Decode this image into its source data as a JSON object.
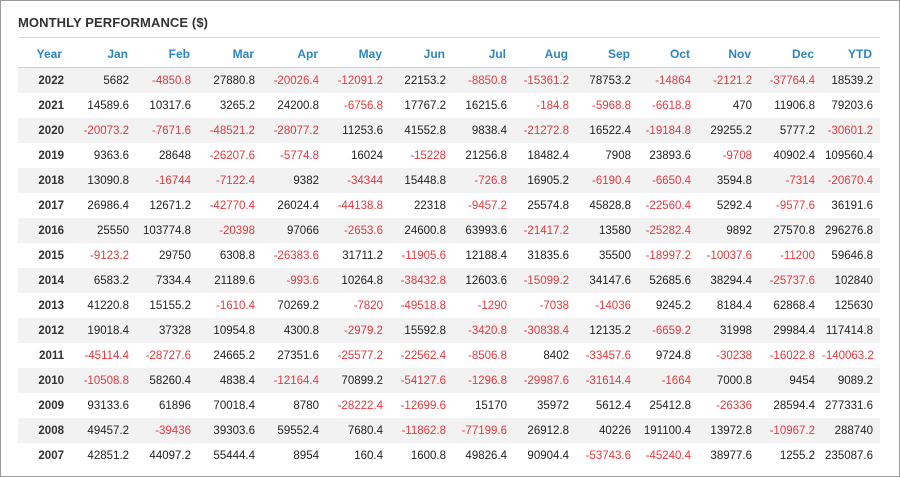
{
  "title": "MONTHLY PERFORMANCE ($)",
  "colors": {
    "header": "#2e86c1",
    "negative": "#e8383d",
    "positive": "#222222",
    "stripe": "#f2f2f2"
  },
  "chart_data": {
    "type": "table",
    "title": "MONTHLY PERFORMANCE ($)",
    "columns": [
      "Year",
      "Jan",
      "Feb",
      "Mar",
      "Apr",
      "May",
      "Jun",
      "Jul",
      "Aug",
      "Sep",
      "Oct",
      "Nov",
      "Dec",
      "YTD"
    ],
    "rows": [
      [
        "2022",
        "5682",
        "-4850.8",
        "27880.8",
        "-20026.4",
        "-12091.2",
        "22153.2",
        "-8850.8",
        "-15361.2",
        "78753.2",
        "-14864",
        "-2121.2",
        "-37764.4",
        "18539.2"
      ],
      [
        "2021",
        "14589.6",
        "10317.6",
        "3265.2",
        "24200.8",
        "-6756.8",
        "17767.2",
        "16215.6",
        "-184.8",
        "-5968.8",
        "-6618.8",
        "470",
        "11906.8",
        "79203.6"
      ],
      [
        "2020",
        "-20073.2",
        "-7671.6",
        "-48521.2",
        "-28077.2",
        "11253.6",
        "41552.8",
        "9838.4",
        "-21272.8",
        "16522.4",
        "-19184.8",
        "29255.2",
        "5777.2",
        "-30601.2"
      ],
      [
        "2019",
        "9363.6",
        "28648",
        "-26207.6",
        "-5774.8",
        "16024",
        "-15228",
        "21256.8",
        "18482.4",
        "7908",
        "23893.6",
        "-9708",
        "40902.4",
        "109560.4"
      ],
      [
        "2018",
        "13090.8",
        "-16744",
        "-7122.4",
        "9382",
        "-34344",
        "15448.8",
        "-726.8",
        "16905.2",
        "-6190.4",
        "-6650.4",
        "3594.8",
        "-7314",
        "-20670.4"
      ],
      [
        "2017",
        "26986.4",
        "12671.2",
        "-42770.4",
        "26024.4",
        "-44138.8",
        "22318",
        "-9457.2",
        "25574.8",
        "45828.8",
        "-22560.4",
        "5292.4",
        "-9577.6",
        "36191.6"
      ],
      [
        "2016",
        "25550",
        "103774.8",
        "-20398",
        "97066",
        "-2653.6",
        "24600.8",
        "63993.6",
        "-21417.2",
        "13580",
        "-25282.4",
        "9892",
        "27570.8",
        "296276.8"
      ],
      [
        "2015",
        "-9123.2",
        "29750",
        "6308.8",
        "-26383.6",
        "31711.2",
        "-11905.6",
        "12188.4",
        "31835.6",
        "35500",
        "-18997.2",
        "-10037.6",
        "-11200",
        "59646.8"
      ],
      [
        "2014",
        "6583.2",
        "7334.4",
        "21189.6",
        "-993.6",
        "10264.8",
        "-38432.8",
        "12603.6",
        "-15099.2",
        "34147.6",
        "52685.6",
        "38294.4",
        "-25737.6",
        "102840"
      ],
      [
        "2013",
        "41220.8",
        "15155.2",
        "-1610.4",
        "70269.2",
        "-7820",
        "-49518.8",
        "-1290",
        "-7038",
        "-14036",
        "9245.2",
        "8184.4",
        "62868.4",
        "125630"
      ],
      [
        "2012",
        "19018.4",
        "37328",
        "10954.8",
        "4300.8",
        "-2979.2",
        "15592.8",
        "-3420.8",
        "-30838.4",
        "12135.2",
        "-6659.2",
        "31998",
        "29984.4",
        "117414.8"
      ],
      [
        "2011",
        "-45114.4",
        "-28727.6",
        "24665.2",
        "27351.6",
        "-25577.2",
        "-22562.4",
        "-8506.8",
        "8402",
        "-33457.6",
        "9724.8",
        "-30238",
        "-16022.8",
        "-140063.2"
      ],
      [
        "2010",
        "-10508.8",
        "58260.4",
        "4838.4",
        "-12164.4",
        "70899.2",
        "-54127.6",
        "-1296.8",
        "-29987.6",
        "-31614.4",
        "-1664",
        "7000.8",
        "9454",
        "9089.2"
      ],
      [
        "2009",
        "93133.6",
        "61896",
        "70018.4",
        "8780",
        "-28222.4",
        "-12699.6",
        "15170",
        "35972",
        "5612.4",
        "25412.8",
        "-26336",
        "28594.4",
        "277331.6"
      ],
      [
        "2008",
        "49457.2",
        "-39436",
        "39303.6",
        "59552.4",
        "7680.4",
        "-11862.8",
        "-77199.6",
        "26912.8",
        "40226",
        "191100.4",
        "13972.8",
        "-10967.2",
        "288740"
      ],
      [
        "2007",
        "42851.2",
        "44097.2",
        "55444.4",
        "8954",
        "160.4",
        "1600.8",
        "49826.4",
        "90904.4",
        "-53743.6",
        "-45240.4",
        "38977.6",
        "1255.2",
        "235087.6"
      ]
    ]
  }
}
